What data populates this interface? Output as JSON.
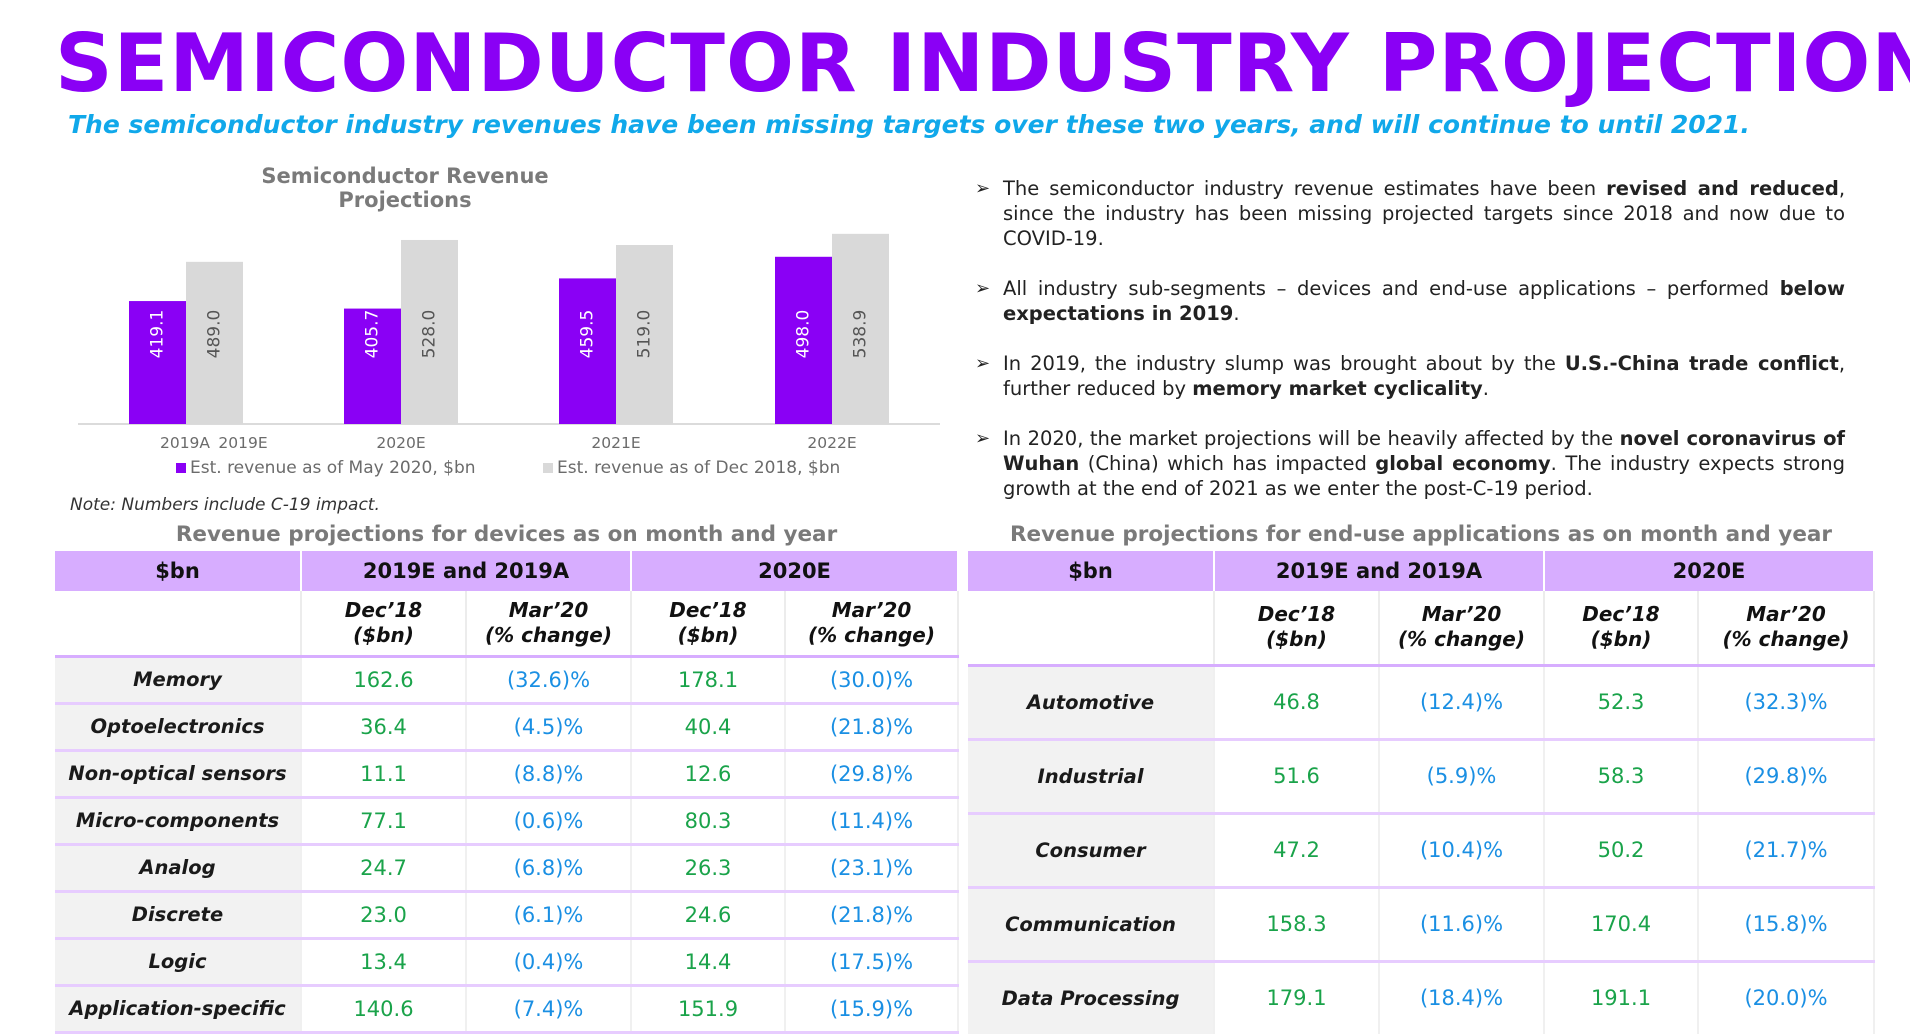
{
  "title": "SEMICONDUCTOR INDUSTRY PROJECTIONS",
  "subtitle": "The semiconductor industry revenues have been missing targets over these two years, and will continue to until 2021.",
  "chart_data": {
    "type": "bar",
    "title": "Semiconductor Revenue Projections",
    "categories": [
      "2019A",
      "2020E",
      "2021E",
      "2022E"
    ],
    "secondary_category_labels": [
      "2019E",
      "",
      "",
      ""
    ],
    "series": [
      {
        "name": "Est. revenue as of May 2020, $bn",
        "values": [
          419.1,
          405.7,
          459.5,
          498.0
        ],
        "value_labels": [
          "419.1",
          "405.7",
          "459.5",
          "498.0"
        ],
        "color": "#8a00f5"
      },
      {
        "name": "Est. revenue as of Dec 2018, $bn",
        "values": [
          489.0,
          528.0,
          519.0,
          538.9
        ],
        "value_labels": [
          "489.0",
          "528.0",
          "519.0",
          "538.9"
        ],
        "color": "#d9d9d9"
      }
    ],
    "ylim": [
      200,
      560
    ],
    "grid": false,
    "legend": "bottom",
    "xlabel": "",
    "ylabel": ""
  },
  "note": "Note: Numbers include C-19 impact.",
  "bullets": [
    [
      {
        "t": "The semiconductor industry revenue estimates have been ",
        "b": false
      },
      {
        "t": "revised and reduced",
        "b": true
      },
      {
        "t": ", since the industry has been missing projected targets since 2018 and now due to COVID-19.",
        "b": false
      }
    ],
    [
      {
        "t": "All industry sub-segments – devices and end-use applications – performed ",
        "b": false
      },
      {
        "t": "below expectations in 2019",
        "b": true
      },
      {
        "t": ".",
        "b": false
      }
    ],
    [
      {
        "t": "In 2019, the industry slump was brought about by the ",
        "b": false
      },
      {
        "t": "U.S.-China trade conflict",
        "b": true
      },
      {
        "t": ", further reduced by ",
        "b": false
      },
      {
        "t": "memory market cyclicality",
        "b": true
      },
      {
        "t": ".",
        "b": false
      }
    ],
    [
      {
        "t": "In 2020, the market projections will be heavily affected by the ",
        "b": false
      },
      {
        "t": "novel coronavirus of Wuhan",
        "b": true
      },
      {
        "t": " (China) which has impacted ",
        "b": false
      },
      {
        "t": "global economy",
        "b": true
      },
      {
        "t": ". The industry expects strong growth at the end of 2021 as we enter the post-C-19 period.",
        "b": false
      }
    ]
  ],
  "devices_table": {
    "title": "Revenue projections for devices as on month and year",
    "header": {
      "unit": "$bn",
      "group1": "2019E and 2019A",
      "group2": "2020E",
      "sub": [
        {
          "line1": "Dec’18",
          "line2": "($bn)"
        },
        {
          "line1": "Mar’20",
          "line2": "(% change)"
        },
        {
          "line1": "Dec’18",
          "line2": "($bn)"
        },
        {
          "line1": "Mar’20",
          "line2": "(% change)"
        }
      ]
    },
    "rows": [
      {
        "label": "Memory",
        "v": [
          "162.6",
          "(32.6)%",
          "178.1",
          "(30.0)%"
        ]
      },
      {
        "label": "Optoelectronics",
        "v": [
          "36.4",
          "(4.5)%",
          "40.4",
          "(21.8)%"
        ]
      },
      {
        "label": "Non-optical sensors",
        "v": [
          "11.1",
          "(8.8)%",
          "12.6",
          "(29.8)%"
        ]
      },
      {
        "label": "Micro-components",
        "v": [
          "77.1",
          "(0.6)%",
          "80.3",
          "(11.4)%"
        ]
      },
      {
        "label": "Analog",
        "v": [
          "24.7",
          "(6.8)%",
          "26.3",
          "(23.1)%"
        ]
      },
      {
        "label": "Discrete",
        "v": [
          "23.0",
          "(6.1)%",
          "24.6",
          "(21.8)%"
        ]
      },
      {
        "label": "Logic",
        "v": [
          "13.4",
          "(0.4)%",
          "14.4",
          "(17.5)%"
        ]
      },
      {
        "label": "Application-specific",
        "v": [
          "140.6",
          "(7.4)%",
          "151.9",
          "(15.9)%"
        ]
      }
    ]
  },
  "applications_table": {
    "title": "Revenue projections for end-use applications as on month and year",
    "header": {
      "unit": "$bn",
      "group1": "2019E and 2019A",
      "group2": "2020E",
      "sub": [
        {
          "line1": "Dec’18",
          "line2": "($bn)"
        },
        {
          "line1": "Mar’20",
          "line2": "(% change)"
        },
        {
          "line1": "Dec’18",
          "line2": "($bn)"
        },
        {
          "line1": "Mar’20",
          "line2": "(% change)"
        }
      ]
    },
    "rows": [
      {
        "label": "Automotive",
        "v": [
          "46.8",
          "(12.4)%",
          "52.3",
          "(32.3)%"
        ]
      },
      {
        "label": "Industrial",
        "v": [
          "51.6",
          "(5.9)%",
          "58.3",
          "(29.8)%"
        ]
      },
      {
        "label": "Consumer",
        "v": [
          "47.2",
          "(10.4)%",
          "50.2",
          "(21.7)%"
        ]
      },
      {
        "label": "Communication",
        "v": [
          "158.3",
          "(11.6)%",
          "170.4",
          "(15.8)%"
        ]
      },
      {
        "label": "Data Processing",
        "v": [
          "179.1",
          "(18.4)%",
          "191.1",
          "(20.0)%"
        ]
      }
    ]
  }
}
